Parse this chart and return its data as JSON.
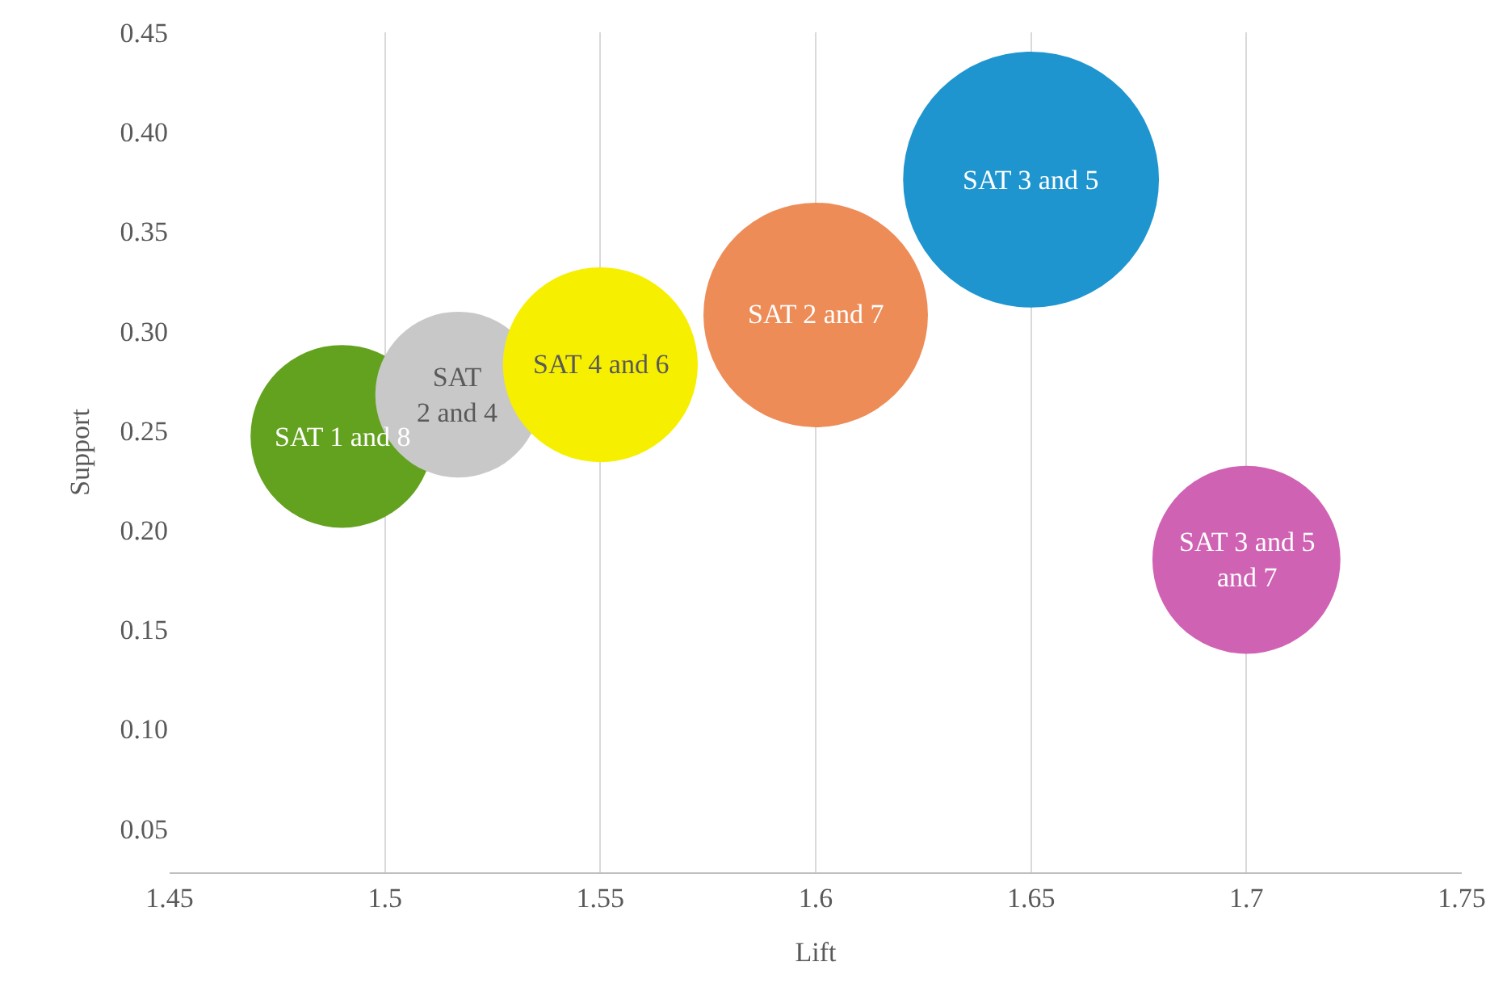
{
  "chart_data": {
    "type": "bubble",
    "xlabel": "Lift",
    "ylabel": "Support",
    "xlim": [
      1.45,
      1.75
    ],
    "xticks": [
      1.45,
      1.5,
      1.55,
      1.6,
      1.65,
      1.7,
      1.75
    ],
    "ylim": [
      0.028,
      0.45
    ],
    "yticks": [
      0.05,
      {
        "value": 0.1,
        "label": "0.10"
      },
      0.15,
      {
        "value": 0.2,
        "label": "0.20"
      },
      0.25,
      {
        "value": 0.3,
        "label": "0.30"
      },
      0.35,
      {
        "value": 0.4,
        "label": "0.40"
      },
      0.45
    ],
    "grid": "x",
    "legend": false,
    "series": [
      {
        "name": "SAT 1 and 8",
        "color": "#63a21f",
        "x": [
          1.49
        ],
        "values": [
          0.247
        ],
        "sizes": [
          0.51
        ]
      },
      {
        "name": "SAT\n2 and 4",
        "color": "#c8c8c8",
        "x": [
          1.517
        ],
        "values": [
          0.268
        ],
        "sizes": [
          0.42
        ]
      },
      {
        "name": "SAT 4 and 6",
        "color": "#f7ef00",
        "x": [
          1.55
        ],
        "values": [
          0.283
        ],
        "sizes": [
          0.58
        ]
      },
      {
        "name": "SAT 2 and 7",
        "color": "#ee8c58",
        "x": [
          1.6
        ],
        "values": [
          0.308
        ],
        "sizes": [
          0.77
        ]
      },
      {
        "name": "SAT 3 and 5",
        "color": "#1f95d0",
        "x": [
          1.65
        ],
        "values": [
          0.376
        ],
        "sizes": [
          1
        ]
      },
      {
        "name": "SAT 3 and 5\nand 7",
        "color": "#d062b4",
        "x": [
          1.7
        ],
        "values": [
          0.185
        ],
        "sizes": [
          0.54
        ]
      }
    ]
  }
}
